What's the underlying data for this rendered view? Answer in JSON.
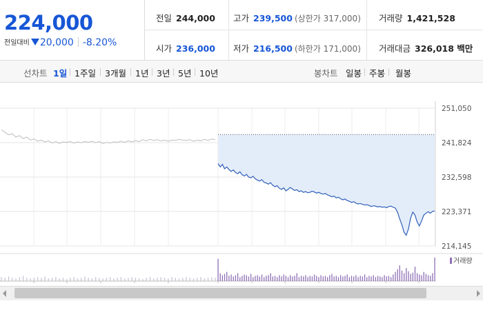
{
  "quote": {
    "price": "224,000",
    "change_label": "전일대비",
    "change_amount": "20,000",
    "change_pct": "-8.20%",
    "prev_close_label": "전일",
    "prev_close": "244,000",
    "high_label": "고가",
    "high": "239,500",
    "upper_limit": "(상한가 317,000)",
    "volume_label": "거래량",
    "volume": "1,421,528",
    "open_label": "시가",
    "open": "236,000",
    "low_label": "저가",
    "low": "216,500",
    "lower_limit": "(하한가 171,000)",
    "value_label": "거래대금",
    "value": "326,018 백만"
  },
  "period": {
    "line_label": "선차트",
    "line_items": [
      "1일",
      "1주일",
      "3개월",
      "1년",
      "3년",
      "5년",
      "10년"
    ],
    "active": "1일",
    "candle_label": "봉차트",
    "candle_items": [
      "일봉",
      "주봉",
      "월봉"
    ]
  },
  "colors": {
    "accent": "#1756d6",
    "line": "#2f5fb8",
    "fill": "#e3ecf9",
    "prev_line": "#bdbdbd",
    "volume_bar": "#8e6fb5"
  },
  "chart_data": {
    "type": "line",
    "y_ticks": [
      "251,050",
      "241,824",
      "232,598",
      "223,371",
      "214,145"
    ],
    "ylim": [
      214145,
      251050
    ],
    "reference_line": 244000,
    "series": [
      {
        "values": [
          245200,
          244600,
          243900,
          244200,
          243300,
          243700,
          242900,
          243300,
          242500,
          242800,
          242200,
          242500,
          242000,
          242300,
          241700,
          242100,
          241600,
          242000,
          241900,
          242100,
          241700,
          242000,
          241800,
          242100,
          241900,
          242200,
          241800,
          242100,
          241600,
          241900,
          241700,
          242000,
          241900,
          242200,
          241900,
          242300,
          242000,
          242400,
          242100,
          242600,
          242300,
          242700,
          242400,
          242600,
          242300,
          242500,
          242200,
          242500,
          242400,
          242700,
          242500,
          242400,
          242600,
          242200,
          242500,
          242300,
          242700,
          242400,
          242800,
          242600
        ]
      },
      {
        "values": [
          236200,
          235300,
          236000,
          234800,
          235300,
          234600,
          234100,
          234500,
          233800,
          233500,
          234000,
          233200,
          232900,
          233300,
          232600,
          232400,
          232800,
          232100,
          231800,
          231500,
          231900,
          231200,
          231000,
          230700,
          231100,
          230400,
          230000,
          230300,
          229600,
          229300,
          229700,
          228900,
          229300,
          229800,
          229400,
          229000,
          229200,
          228700,
          228900,
          228500,
          228700,
          228400,
          228500,
          228800,
          228600,
          228300,
          228500,
          228200,
          228000,
          228200,
          227800,
          227600,
          227300,
          227500,
          227000,
          227200,
          226800,
          226500,
          226700,
          226300,
          226100,
          225800,
          226000,
          225600,
          225400,
          225500,
          225300,
          225100,
          225200,
          225000,
          224700,
          224900,
          224800,
          224600,
          224700,
          224500,
          224600,
          224400,
          224700,
          224800,
          224500,
          224300,
          223200,
          221400,
          219800,
          217800,
          217000,
          218700,
          221600,
          223200,
          222400,
          220500,
          219500,
          220800,
          222400,
          222900,
          223300,
          222900,
          223400,
          223500
        ]
      }
    ],
    "volume_label": "거래량",
    "volume": [
      [
        6,
        5,
        7,
        5,
        4,
        6,
        8,
        5,
        4,
        5,
        6,
        5,
        7,
        4,
        5,
        6,
        4,
        5,
        3,
        5,
        6,
        4,
        5,
        7,
        5,
        4,
        6,
        5,
        4,
        5,
        6,
        4,
        5,
        6,
        4,
        5,
        6,
        5,
        4,
        3,
        5,
        6,
        4,
        5,
        6,
        5,
        4,
        6,
        5,
        4,
        5,
        6,
        5,
        4,
        5,
        6,
        4,
        5,
        6,
        5
      ],
      [
        34,
        12,
        9,
        11,
        14,
        8,
        10,
        7,
        9,
        12,
        6,
        8,
        10,
        9,
        7,
        11,
        6,
        8,
        9,
        7,
        10,
        6,
        8,
        9,
        12,
        7,
        8,
        6,
        9,
        7,
        10,
        8,
        6,
        9,
        7,
        8,
        12,
        6,
        8,
        7,
        9,
        6,
        8,
        7,
        10,
        8,
        6,
        9,
        7,
        8,
        6,
        9,
        11,
        7,
        8,
        6,
        9,
        7,
        8,
        10,
        6,
        8,
        7,
        9,
        6,
        8,
        7,
        10,
        6,
        8,
        7,
        9,
        6,
        8,
        7,
        6,
        9,
        7,
        8,
        6,
        10,
        14,
        18,
        24,
        16,
        12,
        20,
        15,
        11,
        13,
        22,
        12,
        10,
        9,
        14,
        11,
        9,
        8,
        12,
        36
      ]
    ]
  }
}
